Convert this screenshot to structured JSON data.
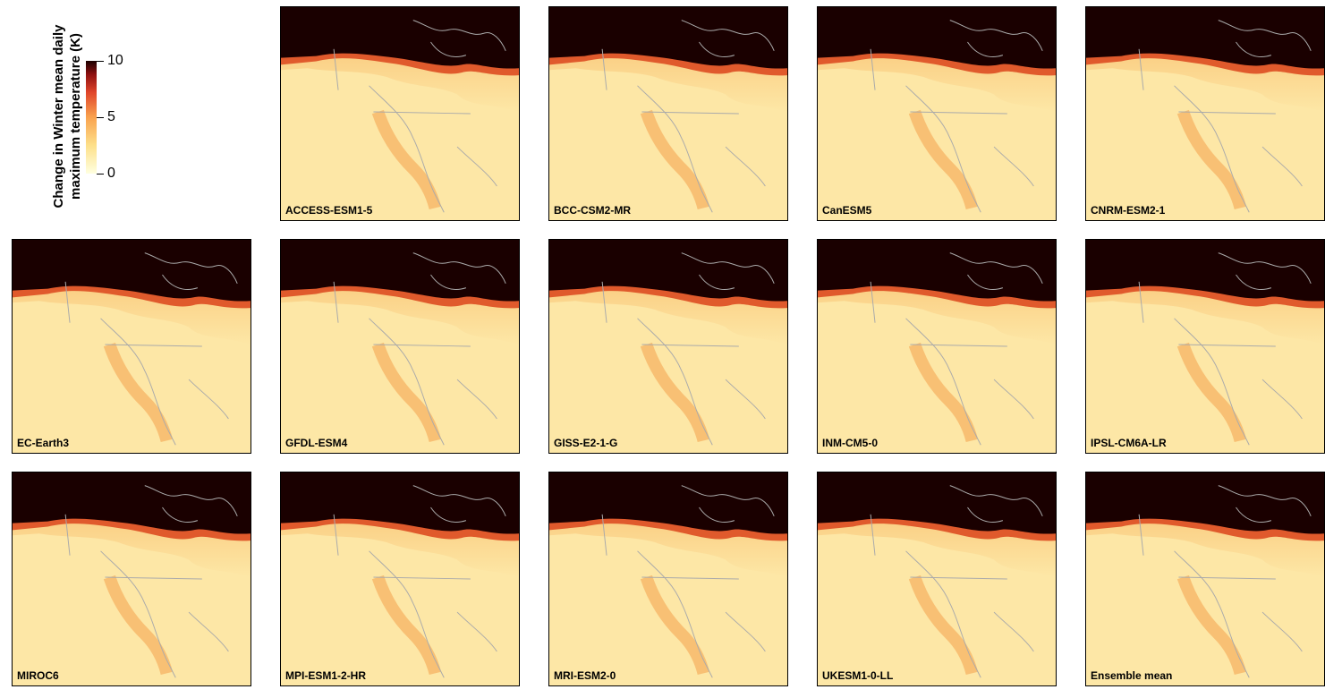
{
  "legend": {
    "title_line1": "Change in Winter mean daily",
    "title_line2": "maximum temperature (K)",
    "ticks": [
      "10",
      "5",
      "0"
    ],
    "range": [
      0,
      10
    ],
    "colors": [
      "#ffffe0",
      "#fde08a",
      "#f9a24e",
      "#e0452a",
      "#8e1010",
      "#1a0000"
    ]
  },
  "panels": [
    {
      "label": "ACCESS-ESM1-5"
    },
    {
      "label": "BCC-CSM2-MR"
    },
    {
      "label": "CanESM5"
    },
    {
      "label": "CNRM-ESM2-1"
    },
    {
      "label": "EC-Earth3"
    },
    {
      "label": "GFDL-ESM4"
    },
    {
      "label": "GISS-E2-1-G"
    },
    {
      "label": "INM-CM5-0"
    },
    {
      "label": "IPSL-CM6A-LR"
    },
    {
      "label": "MIROC6"
    },
    {
      "label": "MPI-ESM1-2-HR"
    },
    {
      "label": "MRI-ESM2-0"
    },
    {
      "label": "UKESM1-0-LL"
    },
    {
      "label": "Ensemble mean"
    }
  ]
}
